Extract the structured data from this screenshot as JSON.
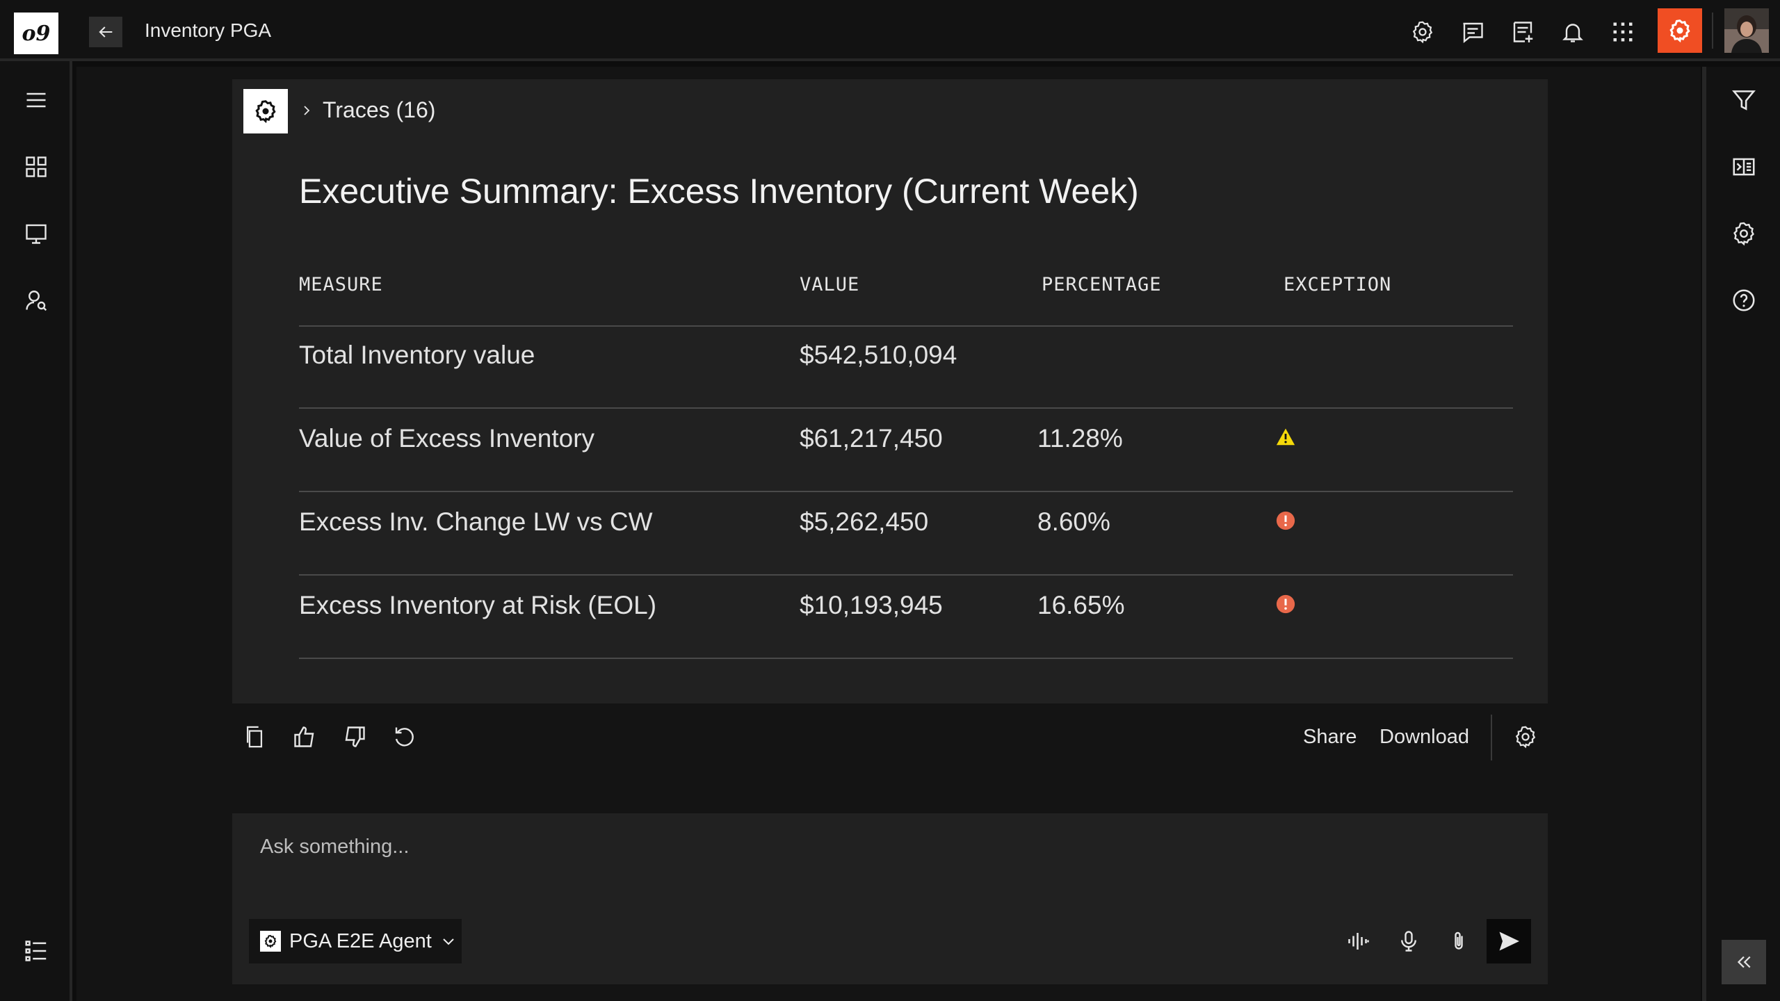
{
  "app": {
    "title": "Inventory PGA",
    "logo_text": "o9"
  },
  "header_icons": [
    "settings-icon",
    "comment-icon",
    "note-add-icon",
    "bell-icon",
    "apps-grid-icon",
    "brand-badge-icon",
    "user-avatar"
  ],
  "left_rail_icons": [
    "menu-icon",
    "dashboard-grid-icon",
    "monitor-icon",
    "user-search-icon",
    "list-icon"
  ],
  "right_rail_icons": [
    "filter-icon",
    "panel-toggle-icon",
    "settings-icon",
    "help-icon",
    "collapse-left-icon"
  ],
  "traces": {
    "label": "Traces (16)"
  },
  "summary": {
    "title": "Executive Summary: Excess Inventory (Current Week)",
    "columns": [
      "MEASURE",
      "VALUE",
      "PERCENTAGE",
      "EXCEPTION"
    ],
    "rows": [
      {
        "measure": "Total Inventory value",
        "value": "$542,510,094",
        "percentage": "",
        "exception": "none"
      },
      {
        "measure": "Value of Excess Inventory",
        "value": "$61,217,450",
        "percentage": "11.28%",
        "exception": "warning"
      },
      {
        "measure": "Excess Inv. Change LW vs CW",
        "value": "$5,262,450",
        "percentage": "8.60%",
        "exception": "alert"
      },
      {
        "measure": "Excess Inventory at Risk (EOL)",
        "value": "$10,193,945",
        "percentage": "16.65%",
        "exception": "alert"
      }
    ]
  },
  "actions": {
    "icons": [
      "copy-icon",
      "thumbs-up-icon",
      "thumbs-down-icon",
      "regenerate-icon",
      "settings-icon"
    ],
    "share_label": "Share",
    "download_label": "Download"
  },
  "prompt": {
    "placeholder": "Ask something...",
    "agent_label": "PGA E2E Agent",
    "icons": [
      "audio-wave-icon",
      "microphone-icon",
      "attachment-icon",
      "send-icon"
    ]
  },
  "colors": {
    "accent": "#f04e23",
    "warning": "#f5d90a",
    "alert": "#e8684a"
  }
}
